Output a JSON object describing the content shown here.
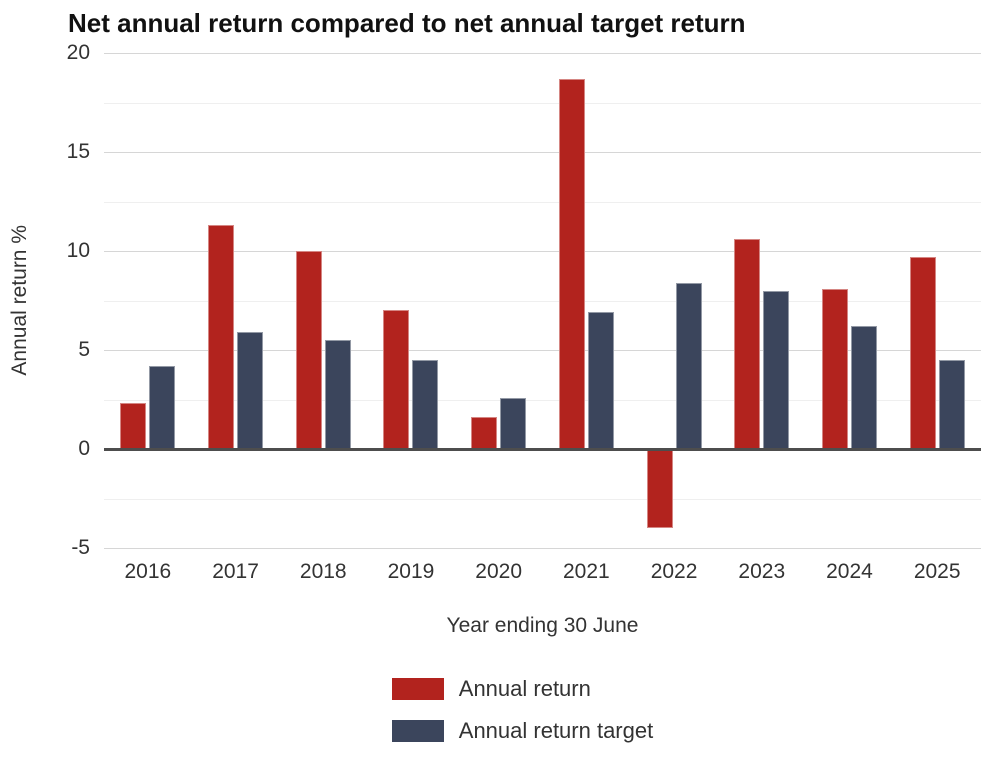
{
  "title": "Net annual return compared to net annual target return",
  "chart_data": {
    "type": "bar",
    "categories": [
      "2016",
      "2017",
      "2018",
      "2019",
      "2020",
      "2021",
      "2022",
      "2023",
      "2024",
      "2025"
    ],
    "series": [
      {
        "name": "Annual return",
        "color": "#b2231e",
        "values": [
          2.3,
          11.3,
          10.0,
          7.0,
          1.6,
          18.7,
          -4.0,
          10.6,
          8.1,
          9.7
        ]
      },
      {
        "name": "Annual return target",
        "color": "#3b455c",
        "values": [
          4.2,
          5.9,
          5.5,
          4.5,
          2.6,
          6.9,
          8.4,
          8.0,
          6.2,
          4.5
        ]
      }
    ],
    "title": "Net annual return compared to net annual target return",
    "xlabel": "Year ending 30 June",
    "ylabel": "Annual return %",
    "ylim": [
      -5,
      20
    ],
    "yticks": [
      20,
      15,
      10,
      5,
      0,
      -5
    ],
    "ytick_labels": [
      "20",
      "15",
      "10",
      "5",
      "0",
      "-5"
    ],
    "minor_tick_step": 2.5,
    "grid": true,
    "legend_position": "bottom",
    "colors": {
      "grid_major": "#d6d6d6",
      "grid_minor": "#efefef",
      "axis_line": "#4d4d4d",
      "text": "#333333",
      "title_text": "#111111"
    }
  }
}
